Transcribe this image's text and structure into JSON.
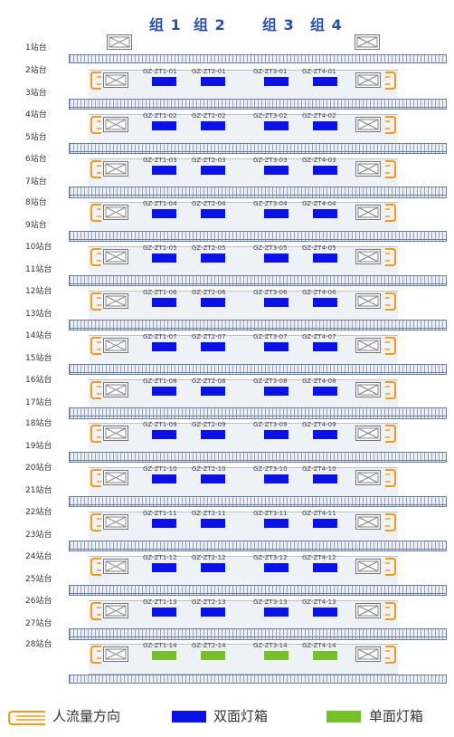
{
  "groups": [
    "组 1",
    "组 2",
    "组 3",
    "组 4"
  ],
  "platform_labels": [
    "1站台",
    "2站台",
    "3站台",
    "4站台",
    "5站台",
    "6站台",
    "7站台",
    "8站台",
    "9站台",
    "10站台",
    "11站台",
    "12站台",
    "13站台",
    "14站台",
    "15站台",
    "16站台",
    "17站台",
    "18站台",
    "19站台",
    "20站台",
    "21站台",
    "22站台",
    "23站台",
    "24站台",
    "25站台",
    "26站台",
    "27站台",
    "28站台"
  ],
  "rows": [
    {
      "codes": [
        "GZ-ZT1-01",
        "GZ-ZT2-01",
        "GZ-ZT3-01",
        "GZ-ZT4-01"
      ],
      "type": "double"
    },
    {
      "codes": [
        "GZ-ZT1-02",
        "GZ-ZT2-02",
        "GZ-ZT3-02",
        "GZ-ZT4-02"
      ],
      "type": "double"
    },
    {
      "codes": [
        "GZ-ZT1-03",
        "GZ-ZT2-03",
        "GZ-ZT3-03",
        "GZ-ZT4-03"
      ],
      "type": "double"
    },
    {
      "codes": [
        "GZ-ZT1-04",
        "GZ-ZT2-04",
        "GZ-ZT3-04",
        "GZ-ZT4-04"
      ],
      "type": "double"
    },
    {
      "codes": [
        "GZ-ZT1-05",
        "GZ-ZT2-05",
        "GZ-ZT3-05",
        "GZ-ZT4-05"
      ],
      "type": "double"
    },
    {
      "codes": [
        "GZ-ZT1-06",
        "GZ-ZT2-06",
        "GZ-ZT3-06",
        "GZ-ZT4-06"
      ],
      "type": "double"
    },
    {
      "codes": [
        "GZ-ZT1-07",
        "GZ-ZT2-07",
        "GZ-ZT3-07",
        "GZ-ZT4-07"
      ],
      "type": "double"
    },
    {
      "codes": [
        "GZ-ZT1-08",
        "GZ-ZT2-08",
        "GZ-ZT3-08",
        "GZ-ZT4-08"
      ],
      "type": "double"
    },
    {
      "codes": [
        "GZ-ZT1-09",
        "GZ-ZT2-09",
        "GZ-ZT3-09",
        "GZ-ZT4-09"
      ],
      "type": "double"
    },
    {
      "codes": [
        "GZ-ZT1-10",
        "GZ-ZT2-10",
        "GZ-ZT3-10",
        "GZ-ZT4-10"
      ],
      "type": "double"
    },
    {
      "codes": [
        "GZ-ZT1-11",
        "GZ-ZT2-11",
        "GZ-ZT3-11",
        "GZ-ZT4-11"
      ],
      "type": "double"
    },
    {
      "codes": [
        "GZ-ZT1-12",
        "GZ-ZT2-12",
        "GZ-ZT3-12",
        "GZ-ZT4-12"
      ],
      "type": "double"
    },
    {
      "codes": [
        "GZ-ZT1-13",
        "GZ-ZT2-13",
        "GZ-ZT3-13",
        "GZ-ZT4-13"
      ],
      "type": "double"
    },
    {
      "codes": [
        "GZ-ZT1-14",
        "GZ-ZT2-14",
        "GZ-ZT3-14",
        "GZ-ZT4-14"
      ],
      "type": "single"
    }
  ],
  "colors": {
    "double": "#0b12e8",
    "single": "#76c12a",
    "flow": "#f29a1d"
  },
  "legend": {
    "flow": "人流量方向",
    "double": "双面灯箱",
    "single": "单面灯箱"
  }
}
